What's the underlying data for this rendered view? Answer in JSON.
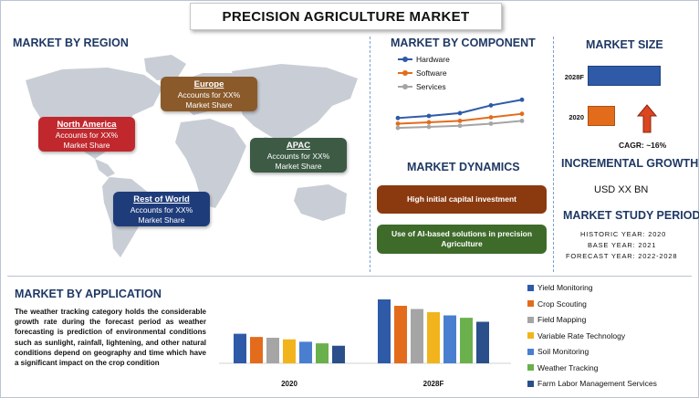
{
  "title": "PRECISION AGRICULTURE MARKET",
  "region": {
    "heading": "MARKET BY REGION",
    "callouts": [
      {
        "name": "North America",
        "line1": "Accounts for XX%",
        "line2": "Market Share",
        "color": "#c0282d"
      },
      {
        "name": "Europe",
        "line1": "Accounts for XX%",
        "line2": "Market Share",
        "color": "#8b5a2b"
      },
      {
        "name": "APAC",
        "line1": "Accounts for XX%",
        "line2": "Market Share",
        "color": "#3d5a45"
      },
      {
        "name": "Rest of World",
        "line1": "Accounts for XX%",
        "line2": "Market Share",
        "color": "#1f3c7a"
      }
    ]
  },
  "component": {
    "heading": "MARKET BY COMPONENT",
    "legend": [
      "Hardware",
      "Software",
      "Services"
    ],
    "colors": [
      "#2e5aa8",
      "#e36c1c",
      "#a5a5a5"
    ],
    "chart_data": {
      "type": "line",
      "x": [
        1,
        2,
        3,
        4,
        5
      ],
      "series": [
        {
          "name": "Hardware",
          "values": [
            3.2,
            3.5,
            3.9,
            5.0,
            5.8
          ]
        },
        {
          "name": "Software",
          "values": [
            2.4,
            2.6,
            2.8,
            3.3,
            3.8
          ]
        },
        {
          "name": "Services",
          "values": [
            1.8,
            1.95,
            2.1,
            2.4,
            2.8
          ]
        }
      ],
      "ylim": [
        0,
        7
      ]
    }
  },
  "size": {
    "heading": "MARKET SIZE",
    "chart_data": {
      "type": "bar",
      "categories": [
        "2028F",
        "2020"
      ],
      "values": [
        100,
        38
      ],
      "colors": [
        "#2e5aa8",
        "#e36c1c"
      ]
    },
    "cagr": "CAGR:  ~16%"
  },
  "growth": {
    "heading": "INCREMENTAL GROWTH",
    "value": "USD XX BN"
  },
  "study": {
    "heading": "MARKET STUDY PERIOD",
    "historic": "HISTORIC YEAR: 2020",
    "base": "BASE YEAR: 2021",
    "forecast": "FORECAST YEAR: 2022-2028"
  },
  "dynamics": {
    "heading": "MARKET DYNAMICS",
    "items": [
      {
        "text": "High initial capital investment",
        "color": "#8b3a10"
      },
      {
        "text": "Use of AI-based solutions in precision Agriculture",
        "color": "#3e6b2a"
      }
    ]
  },
  "application": {
    "heading": "MARKET BY APPLICATION",
    "text": "The weather tracking category holds the considerable growth rate during the forecast period as weather forecasting is prediction of environmental conditions such as sunlight, rainfall, lightening, and other natural conditions depend on geography and time which have a significant impact on the crop condition",
    "chart_data": {
      "type": "bar",
      "categories": [
        "2020",
        "2028F"
      ],
      "series": [
        {
          "name": "Yield Monitoring",
          "values": [
            37,
            80
          ]
        },
        {
          "name": "Crop Scouting",
          "values": [
            33,
            72
          ]
        },
        {
          "name": "Field Mapping",
          "values": [
            32,
            68
          ]
        },
        {
          "name": "Variable Rate Technology",
          "values": [
            30,
            64
          ]
        },
        {
          "name": "Soil Monitoring",
          "values": [
            27,
            60
          ]
        },
        {
          "name": "Weather Tracking",
          "values": [
            25,
            57
          ]
        },
        {
          "name": "Farm Labor Management Services",
          "values": [
            22,
            52
          ]
        }
      ],
      "colors": [
        "#2e5aa8",
        "#e36c1c",
        "#a5a5a5",
        "#f2b41c",
        "#4a7fd0",
        "#6ab04c",
        "#2a4f8a"
      ]
    }
  }
}
